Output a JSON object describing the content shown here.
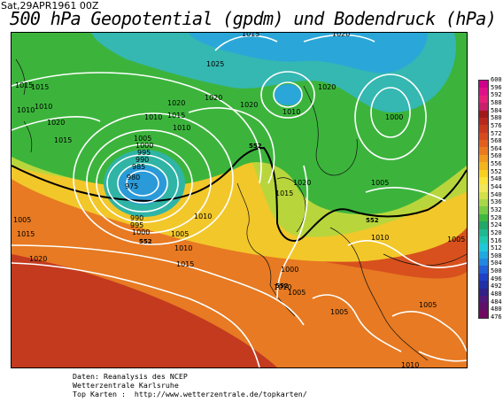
{
  "header": {
    "date_label": "Sat,29APR1961 00Z",
    "title": "500 hPa Geopotential (gpdm) und Bodendruck (hPa)"
  },
  "map": {
    "contour_5520_label": "552",
    "isobar_labels": [
      "1015",
      "1010",
      "1015",
      "1010",
      "1025",
      "1015",
      "1020",
      "1015",
      "1010",
      "1020",
      "1015",
      "1010",
      "1020",
      "1020",
      "1020",
      "1010",
      "1005",
      "1000",
      "995",
      "990",
      "985",
      "980",
      "975",
      "990",
      "995",
      "1000",
      "1005",
      "1010",
      "1005",
      "1015",
      "1020",
      "1015",
      "1010",
      "1015",
      "1020",
      "1005",
      "1010",
      "1005",
      "1000",
      "1005",
      "1010",
      "1005",
      "1005",
      "1020",
      "1010"
    ],
    "low_center": "975",
    "high_center": "1000"
  },
  "color_scale": {
    "labels": [
      "600",
      "596",
      "592",
      "588",
      "584",
      "580",
      "576",
      "572",
      "568",
      "564",
      "560",
      "556",
      "552",
      "548",
      "544",
      "540",
      "536",
      "532",
      "528",
      "524",
      "520",
      "516",
      "512",
      "508",
      "504",
      "500",
      "496",
      "492",
      "488",
      "484",
      "480",
      "476"
    ],
    "colors": [
      "#d0008a",
      "#e0108a",
      "#e8207a",
      "#c8206a",
      "#a01a1a",
      "#b8281e",
      "#c83a1e",
      "#d84a1e",
      "#e2601e",
      "#ea7a1e",
      "#f09a1e",
      "#f4b41e",
      "#f8d01e",
      "#fae43a",
      "#f0e85a",
      "#d4e04a",
      "#a8d848",
      "#78cc44",
      "#40b840",
      "#20a868",
      "#20b890",
      "#20c8b0",
      "#20c8d8",
      "#20a8e0",
      "#2088e0",
      "#2060d8",
      "#2040c8",
      "#2030a8",
      "#302088",
      "#501878",
      "#601068",
      "#700860"
    ]
  },
  "credits": {
    "line1": "Daten: Reanalysis des NCEP",
    "line2": "Wetterzentrale Karlsruhe",
    "line3": "Top Karten :  http://www.wetterzentrale.de/topkarten/"
  }
}
